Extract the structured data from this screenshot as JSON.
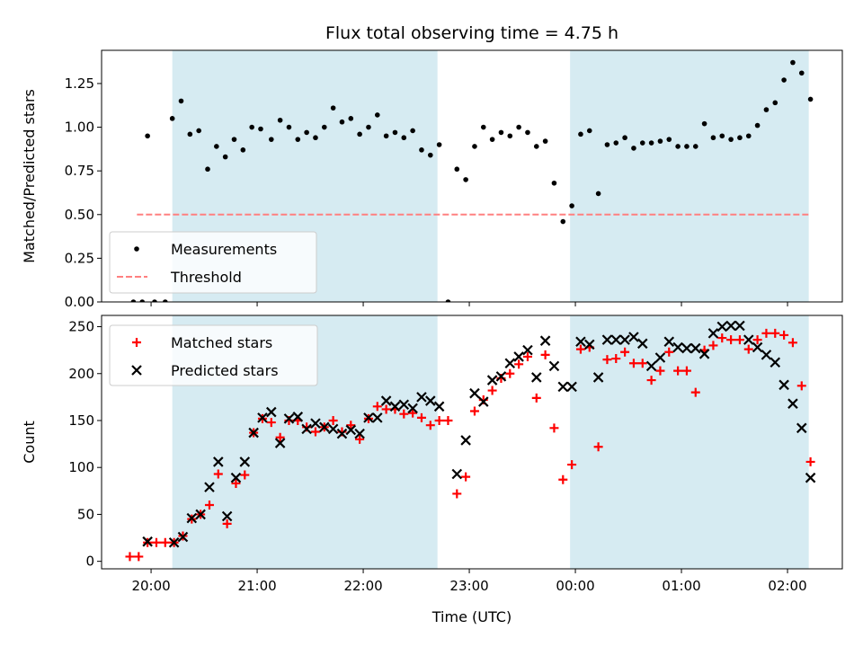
{
  "chart_data": [
    {
      "type": "scatter",
      "title": "Flux total observing time = 4.75 h",
      "xlabel": "",
      "ylabel": "Matched/Predicted stars",
      "xlim": [
        "19:32",
        "02:31"
      ],
      "ylim": [
        0,
        1.44
      ],
      "yticks": [
        0.0,
        0.25,
        0.5,
        0.75,
        1.0,
        1.25
      ],
      "ytick_labels": [
        "0.00",
        "0.25",
        "0.50",
        "0.75",
        "1.00",
        "1.25"
      ],
      "shaded_intervals": [
        [
          "20:12",
          "22:42"
        ],
        [
          "23:57",
          "02:12"
        ]
      ],
      "threshold": {
        "name": "Threshold",
        "value": 0.5,
        "x_range": [
          "19:52",
          "02:12"
        ],
        "color": "#ff8080",
        "style": "dashed"
      },
      "legend": {
        "position": "lower-left",
        "entries": [
          "Measurements",
          "Threshold"
        ]
      },
      "series": [
        {
          "name": "Measurements",
          "color": "#000000",
          "marker": "dot",
          "points": [
            [
              "19:50",
              0.0
            ],
            [
              "19:55",
              0.0
            ],
            [
              "19:58",
              0.95
            ],
            [
              "20:02",
              0.0
            ],
            [
              "20:08",
              0.0
            ],
            [
              "20:12",
              1.05
            ],
            [
              "20:17",
              1.15
            ],
            [
              "20:22",
              0.96
            ],
            [
              "20:27",
              0.98
            ],
            [
              "20:32",
              0.76
            ],
            [
              "20:37",
              0.89
            ],
            [
              "20:42",
              0.83
            ],
            [
              "20:47",
              0.93
            ],
            [
              "20:52",
              0.87
            ],
            [
              "20:57",
              1.0
            ],
            [
              "21:02",
              0.99
            ],
            [
              "21:08",
              0.93
            ],
            [
              "21:13",
              1.04
            ],
            [
              "21:18",
              1.0
            ],
            [
              "21:23",
              0.93
            ],
            [
              "21:28",
              0.97
            ],
            [
              "21:33",
              0.94
            ],
            [
              "21:38",
              1.0
            ],
            [
              "21:43",
              1.11
            ],
            [
              "21:48",
              1.03
            ],
            [
              "21:53",
              1.05
            ],
            [
              "21:58",
              0.96
            ],
            [
              "22:03",
              1.0
            ],
            [
              "22:08",
              1.07
            ],
            [
              "22:13",
              0.95
            ],
            [
              "22:18",
              0.97
            ],
            [
              "22:23",
              0.94
            ],
            [
              "22:28",
              0.98
            ],
            [
              "22:33",
              0.87
            ],
            [
              "22:38",
              0.84
            ],
            [
              "22:43",
              0.9
            ],
            [
              "22:48",
              0.0
            ],
            [
              "22:53",
              0.76
            ],
            [
              "22:58",
              0.7
            ],
            [
              "23:03",
              0.89
            ],
            [
              "23:08",
              1.0
            ],
            [
              "23:13",
              0.93
            ],
            [
              "23:18",
              0.97
            ],
            [
              "23:23",
              0.95
            ],
            [
              "23:28",
              1.0
            ],
            [
              "23:33",
              0.97
            ],
            [
              "23:38",
              0.89
            ],
            [
              "23:43",
              0.92
            ],
            [
              "23:48",
              0.68
            ],
            [
              "23:53",
              0.46
            ],
            [
              "23:58",
              0.55
            ],
            [
              "00:03",
              0.96
            ],
            [
              "00:08",
              0.98
            ],
            [
              "00:13",
              0.62
            ],
            [
              "00:18",
              0.9
            ],
            [
              "00:23",
              0.91
            ],
            [
              "00:28",
              0.94
            ],
            [
              "00:33",
              0.88
            ],
            [
              "00:38",
              0.91
            ],
            [
              "00:43",
              0.91
            ],
            [
              "00:48",
              0.92
            ],
            [
              "00:53",
              0.93
            ],
            [
              "00:58",
              0.89
            ],
            [
              "01:03",
              0.89
            ],
            [
              "01:08",
              0.89
            ],
            [
              "01:13",
              1.02
            ],
            [
              "01:18",
              0.94
            ],
            [
              "01:23",
              0.95
            ],
            [
              "01:28",
              0.93
            ],
            [
              "01:33",
              0.94
            ],
            [
              "01:38",
              0.95
            ],
            [
              "01:43",
              1.01
            ],
            [
              "01:48",
              1.1
            ],
            [
              "01:53",
              1.14
            ],
            [
              "01:58",
              1.27
            ],
            [
              "02:03",
              1.37
            ],
            [
              "02:08",
              1.31
            ],
            [
              "02:13",
              1.16
            ]
          ]
        }
      ]
    },
    {
      "type": "scatter",
      "title": "",
      "xlabel": "Time (UTC)",
      "ylabel": "Count",
      "xlim": [
        "19:32",
        "02:31"
      ],
      "ylim": [
        -8,
        262
      ],
      "xticks": [
        "20:00",
        "21:00",
        "22:00",
        "23:00",
        "00:00",
        "01:00",
        "02:00"
      ],
      "xtick_labels": [
        "20:00",
        "21:00",
        "22:00",
        "23:00",
        "00:00",
        "01:00",
        "02:00"
      ],
      "yticks": [
        0,
        50,
        100,
        150,
        200,
        250
      ],
      "ytick_labels": [
        "0",
        "50",
        "100",
        "150",
        "200",
        "250"
      ],
      "shaded_intervals": [
        [
          "20:12",
          "22:42"
        ],
        [
          "23:57",
          "02:12"
        ]
      ],
      "legend": {
        "position": "upper-left",
        "entries": [
          "Matched stars",
          "Predicted stars"
        ]
      },
      "series": [
        {
          "name": "Matched stars",
          "color": "#ff0000",
          "marker": "plus",
          "points": [
            [
              "19:48",
              5
            ],
            [
              "19:53",
              5
            ],
            [
              "19:58",
              20
            ],
            [
              "20:03",
              20
            ],
            [
              "20:08",
              20
            ],
            [
              "20:13",
              20
            ],
            [
              "20:18",
              27
            ],
            [
              "20:23",
              45
            ],
            [
              "20:28",
              50
            ],
            [
              "20:33",
              60
            ],
            [
              "20:38",
              93
            ],
            [
              "20:43",
              40
            ],
            [
              "20:48",
              83
            ],
            [
              "20:53",
              92
            ],
            [
              "20:58",
              137
            ],
            [
              "21:03",
              152
            ],
            [
              "21:08",
              148
            ],
            [
              "21:13",
              132
            ],
            [
              "21:18",
              150
            ],
            [
              "21:23",
              150
            ],
            [
              "21:28",
              143
            ],
            [
              "21:33",
              138
            ],
            [
              "21:38",
              143
            ],
            [
              "21:43",
              150
            ],
            [
              "21:48",
              138
            ],
            [
              "21:53",
              145
            ],
            [
              "21:58",
              130
            ],
            [
              "22:03",
              152
            ],
            [
              "22:08",
              165
            ],
            [
              "22:13",
              162
            ],
            [
              "22:18",
              162
            ],
            [
              "22:23",
              157
            ],
            [
              "22:28",
              158
            ],
            [
              "22:33",
              153
            ],
            [
              "22:38",
              145
            ],
            [
              "22:43",
              150
            ],
            [
              "22:48",
              150
            ],
            [
              "22:53",
              72
            ],
            [
              "22:58",
              90
            ],
            [
              "23:03",
              160
            ],
            [
              "23:08",
              172
            ],
            [
              "23:13",
              182
            ],
            [
              "23:18",
              195
            ],
            [
              "23:23",
              200
            ],
            [
              "23:28",
              210
            ],
            [
              "23:33",
              218
            ],
            [
              "23:38",
              174
            ],
            [
              "23:43",
              220
            ],
            [
              "23:48",
              142
            ],
            [
              "23:53",
              87
            ],
            [
              "23:58",
              103
            ],
            [
              "00:03",
              226
            ],
            [
              "00:08",
              228
            ],
            [
              "00:13",
              122
            ],
            [
              "00:18",
              215
            ],
            [
              "00:23",
              216
            ],
            [
              "00:28",
              223
            ],
            [
              "00:33",
              211
            ],
            [
              "00:38",
              211
            ],
            [
              "00:43",
              193
            ],
            [
              "00:48",
              203
            ],
            [
              "00:53",
              223
            ],
            [
              "00:58",
              203
            ],
            [
              "01:03",
              203
            ],
            [
              "01:08",
              180
            ],
            [
              "01:13",
              225
            ],
            [
              "01:18",
              230
            ],
            [
              "01:23",
              238
            ],
            [
              "01:28",
              236
            ],
            [
              "01:33",
              236
            ],
            [
              "01:38",
              226
            ],
            [
              "01:43",
              236
            ],
            [
              "01:48",
              243
            ],
            [
              "01:53",
              243
            ],
            [
              "01:58",
              241
            ],
            [
              "02:03",
              233
            ],
            [
              "02:08",
              187
            ],
            [
              "02:13",
              106
            ]
          ]
        },
        {
          "name": "Predicted stars",
          "color": "#000000",
          "marker": "x",
          "points": [
            [
              "19:58",
              21
            ],
            [
              "20:13",
              20
            ],
            [
              "20:18",
              26
            ],
            [
              "20:23",
              46
            ],
            [
              "20:28",
              50
            ],
            [
              "20:33",
              79
            ],
            [
              "20:38",
              106
            ],
            [
              "20:43",
              48
            ],
            [
              "20:48",
              89
            ],
            [
              "20:53",
              106
            ],
            [
              "20:58",
              137
            ],
            [
              "21:03",
              153
            ],
            [
              "21:08",
              159
            ],
            [
              "21:13",
              126
            ],
            [
              "21:18",
              152
            ],
            [
              "21:23",
              154
            ],
            [
              "21:28",
              141
            ],
            [
              "21:33",
              147
            ],
            [
              "21:38",
              143
            ],
            [
              "21:43",
              141
            ],
            [
              "21:48",
              136
            ],
            [
              "21:53",
              140
            ],
            [
              "21:58",
              136
            ],
            [
              "22:03",
              153
            ],
            [
              "22:08",
              153
            ],
            [
              "22:13",
              171
            ],
            [
              "22:18",
              165
            ],
            [
              "22:23",
              167
            ],
            [
              "22:28",
              163
            ],
            [
              "22:33",
              175
            ],
            [
              "22:38",
              171
            ],
            [
              "22:43",
              165
            ],
            [
              "22:53",
              93
            ],
            [
              "22:58",
              129
            ],
            [
              "23:03",
              179
            ],
            [
              "23:08",
              170
            ],
            [
              "23:13",
              193
            ],
            [
              "23:18",
              197
            ],
            [
              "23:23",
              211
            ],
            [
              "23:28",
              218
            ],
            [
              "23:33",
              225
            ],
            [
              "23:38",
              196
            ],
            [
              "23:43",
              235
            ],
            [
              "23:48",
              208
            ],
            [
              "23:53",
              186
            ],
            [
              "23:58",
              186
            ],
            [
              "00:03",
              234
            ],
            [
              "00:08",
              231
            ],
            [
              "00:13",
              196
            ],
            [
              "00:18",
              236
            ],
            [
              "00:23",
              236
            ],
            [
              "00:28",
              236
            ],
            [
              "00:33",
              239
            ],
            [
              "00:38",
              232
            ],
            [
              "00:43",
              208
            ],
            [
              "00:48",
              217
            ],
            [
              "00:53",
              234
            ],
            [
              "00:58",
              228
            ],
            [
              "01:03",
              227
            ],
            [
              "01:08",
              227
            ],
            [
              "01:13",
              221
            ],
            [
              "01:18",
              243
            ],
            [
              "01:23",
              250
            ],
            [
              "01:28",
              251
            ],
            [
              "01:33",
              251
            ],
            [
              "01:38",
              236
            ],
            [
              "01:43",
              228
            ],
            [
              "01:48",
              220
            ],
            [
              "01:53",
              212
            ],
            [
              "01:58",
              188
            ],
            [
              "02:03",
              168
            ],
            [
              "02:08",
              142
            ],
            [
              "02:13",
              89
            ]
          ]
        }
      ]
    }
  ]
}
